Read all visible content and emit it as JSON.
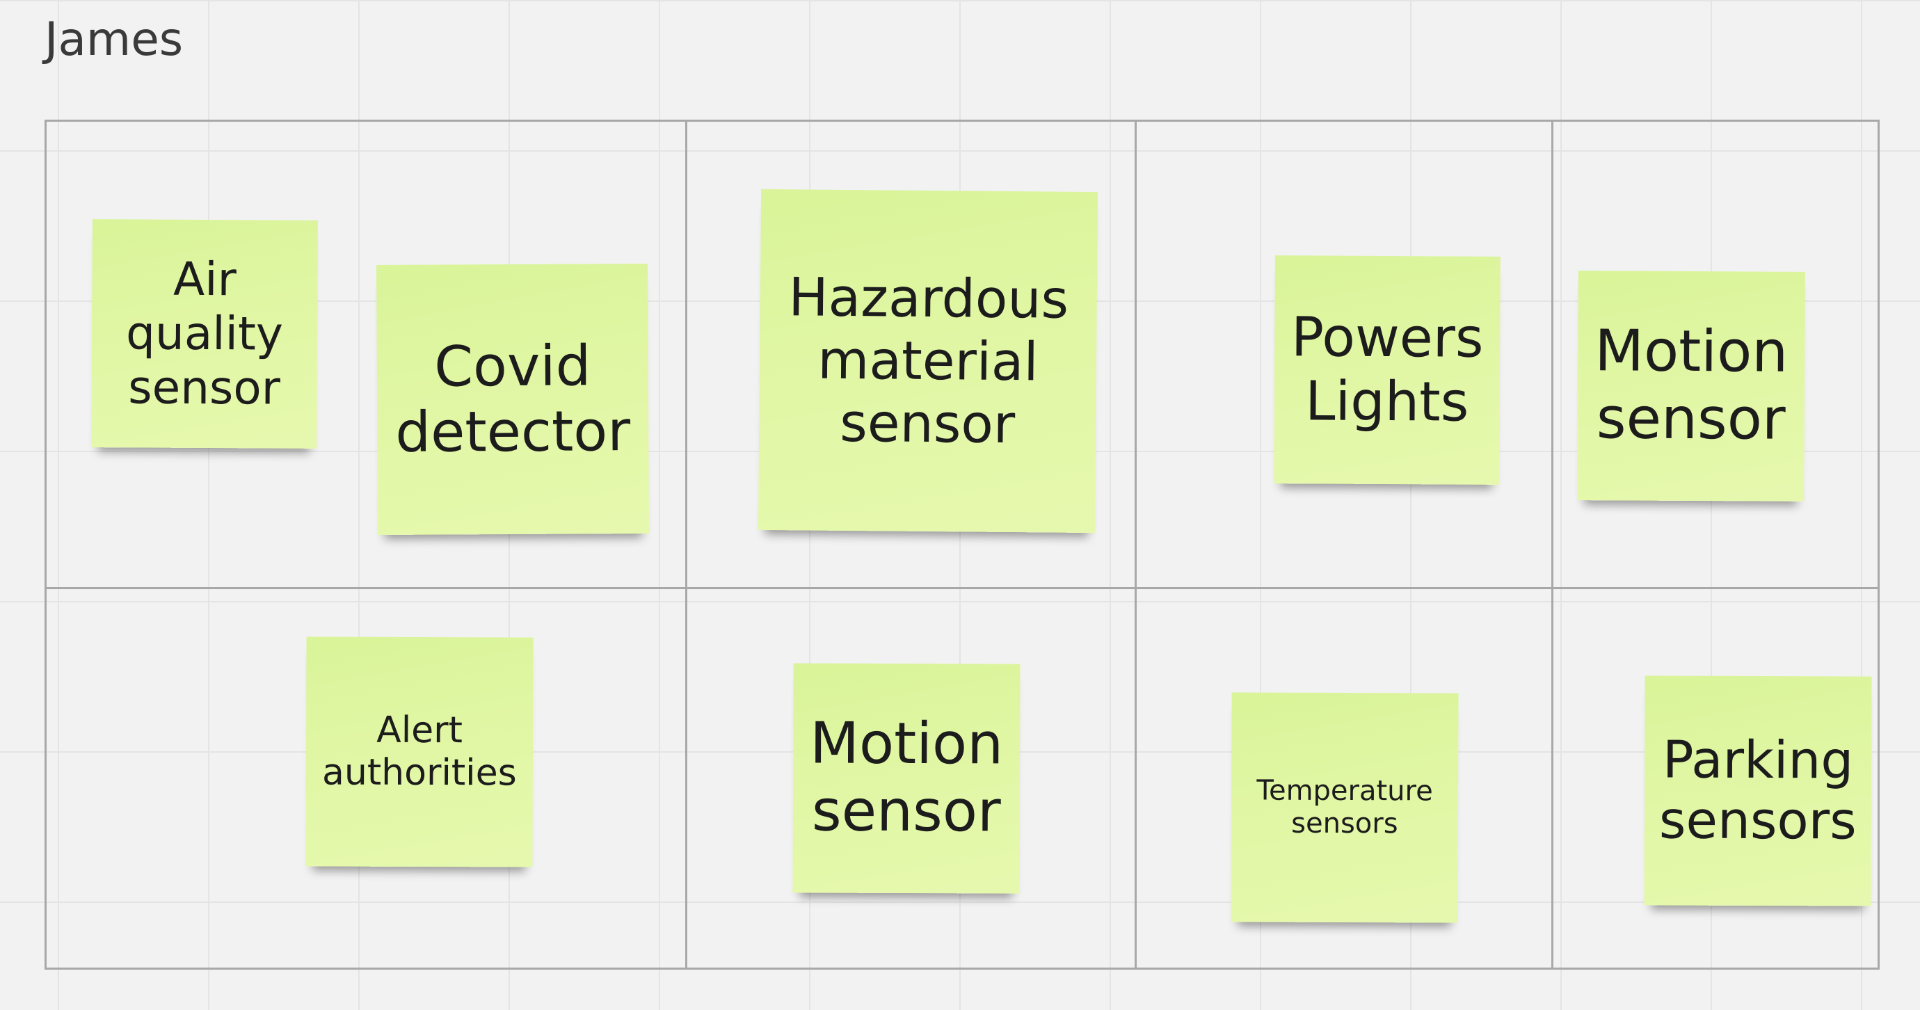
{
  "board": {
    "title": "James"
  },
  "notes": [
    {
      "id": "air-quality",
      "label": "Air quality sensor"
    },
    {
      "id": "covid",
      "label": "Covid detector"
    },
    {
      "id": "hazardous",
      "label": "Hazardous material sensor"
    },
    {
      "id": "powers-lights",
      "label": "Powers Lights"
    },
    {
      "id": "motion-1",
      "label": "Motion sensor"
    },
    {
      "id": "alert",
      "label": "Alert authorities"
    },
    {
      "id": "motion-2",
      "label": "Motion sensor"
    },
    {
      "id": "temperature",
      "label": "Temperature sensors"
    },
    {
      "id": "parking",
      "label": "Parking sensors"
    }
  ],
  "colors": {
    "note": "#e2f7a6",
    "canvas": "#f2f2f2",
    "frame": "#a8a8a8"
  }
}
